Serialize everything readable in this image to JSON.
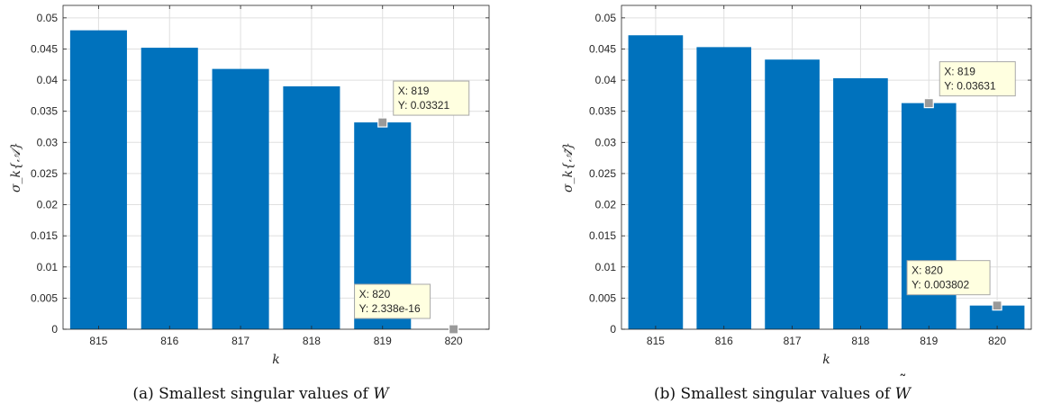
{
  "figures": [
    {
      "caption_prefix": "(a) Smallest singular values of",
      "caption_var": "W",
      "tilde": false
    },
    {
      "caption_prefix": "(b) Smallest singular values of",
      "caption_var": "W",
      "tilde": true
    }
  ],
  "chart_data": [
    {
      "type": "bar",
      "xlabel": "k",
      "ylabel": "σ_k{𝒜}",
      "categories": [
        "815",
        "816",
        "817",
        "818",
        "819",
        "820"
      ],
      "values": [
        0.048,
        0.0452,
        0.0418,
        0.039,
        0.03321,
        2.338e-16
      ],
      "ylim": [
        0,
        0.052
      ],
      "yticks": [
        "0",
        "0.005",
        "0.01",
        "0.015",
        "0.02",
        "0.025",
        "0.03",
        "0.035",
        "0.04",
        "0.045",
        "0.05"
      ],
      "bar_color": "#0072BD",
      "grid": true,
      "datatips": [
        {
          "x": "819",
          "y": 0.03321,
          "line1": "X: 819",
          "line2": "Y: 0.03321"
        },
        {
          "x": "820",
          "y": 2.338e-16,
          "line1": "X: 820",
          "line2": "Y: 2.338e-16"
        }
      ]
    },
    {
      "type": "bar",
      "xlabel": "k",
      "ylabel": "σ_k{𝒜̃}",
      "categories": [
        "815",
        "816",
        "817",
        "818",
        "819",
        "820"
      ],
      "values": [
        0.0472,
        0.0453,
        0.0433,
        0.0403,
        0.03631,
        0.003802
      ],
      "ylim": [
        0,
        0.052
      ],
      "yticks": [
        "0",
        "0.005",
        "0.01",
        "0.015",
        "0.02",
        "0.025",
        "0.03",
        "0.035",
        "0.04",
        "0.045",
        "0.05"
      ],
      "bar_color": "#0072BD",
      "grid": true,
      "datatips": [
        {
          "x": "819",
          "y": 0.03631,
          "line1": "X: 819",
          "line2": "Y: 0.03631"
        },
        {
          "x": "820",
          "y": 0.003802,
          "line1": "X: 820",
          "line2": "Y: 0.003802"
        }
      ]
    }
  ]
}
